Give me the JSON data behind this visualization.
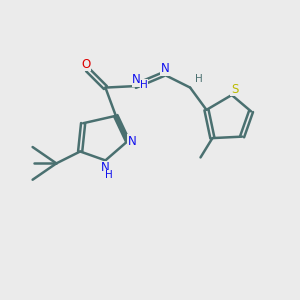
{
  "background_color": "#ebebeb",
  "bond_color": "#4a7070",
  "n_color": "#1010ee",
  "o_color": "#dd0000",
  "s_color": "#bbbb00",
  "line_width": 1.8,
  "font_size": 8.5,
  "fig_width": 3.0,
  "fig_height": 3.0,
  "dpi": 100,
  "xlim": [
    0,
    10
  ],
  "ylim": [
    0,
    10
  ]
}
